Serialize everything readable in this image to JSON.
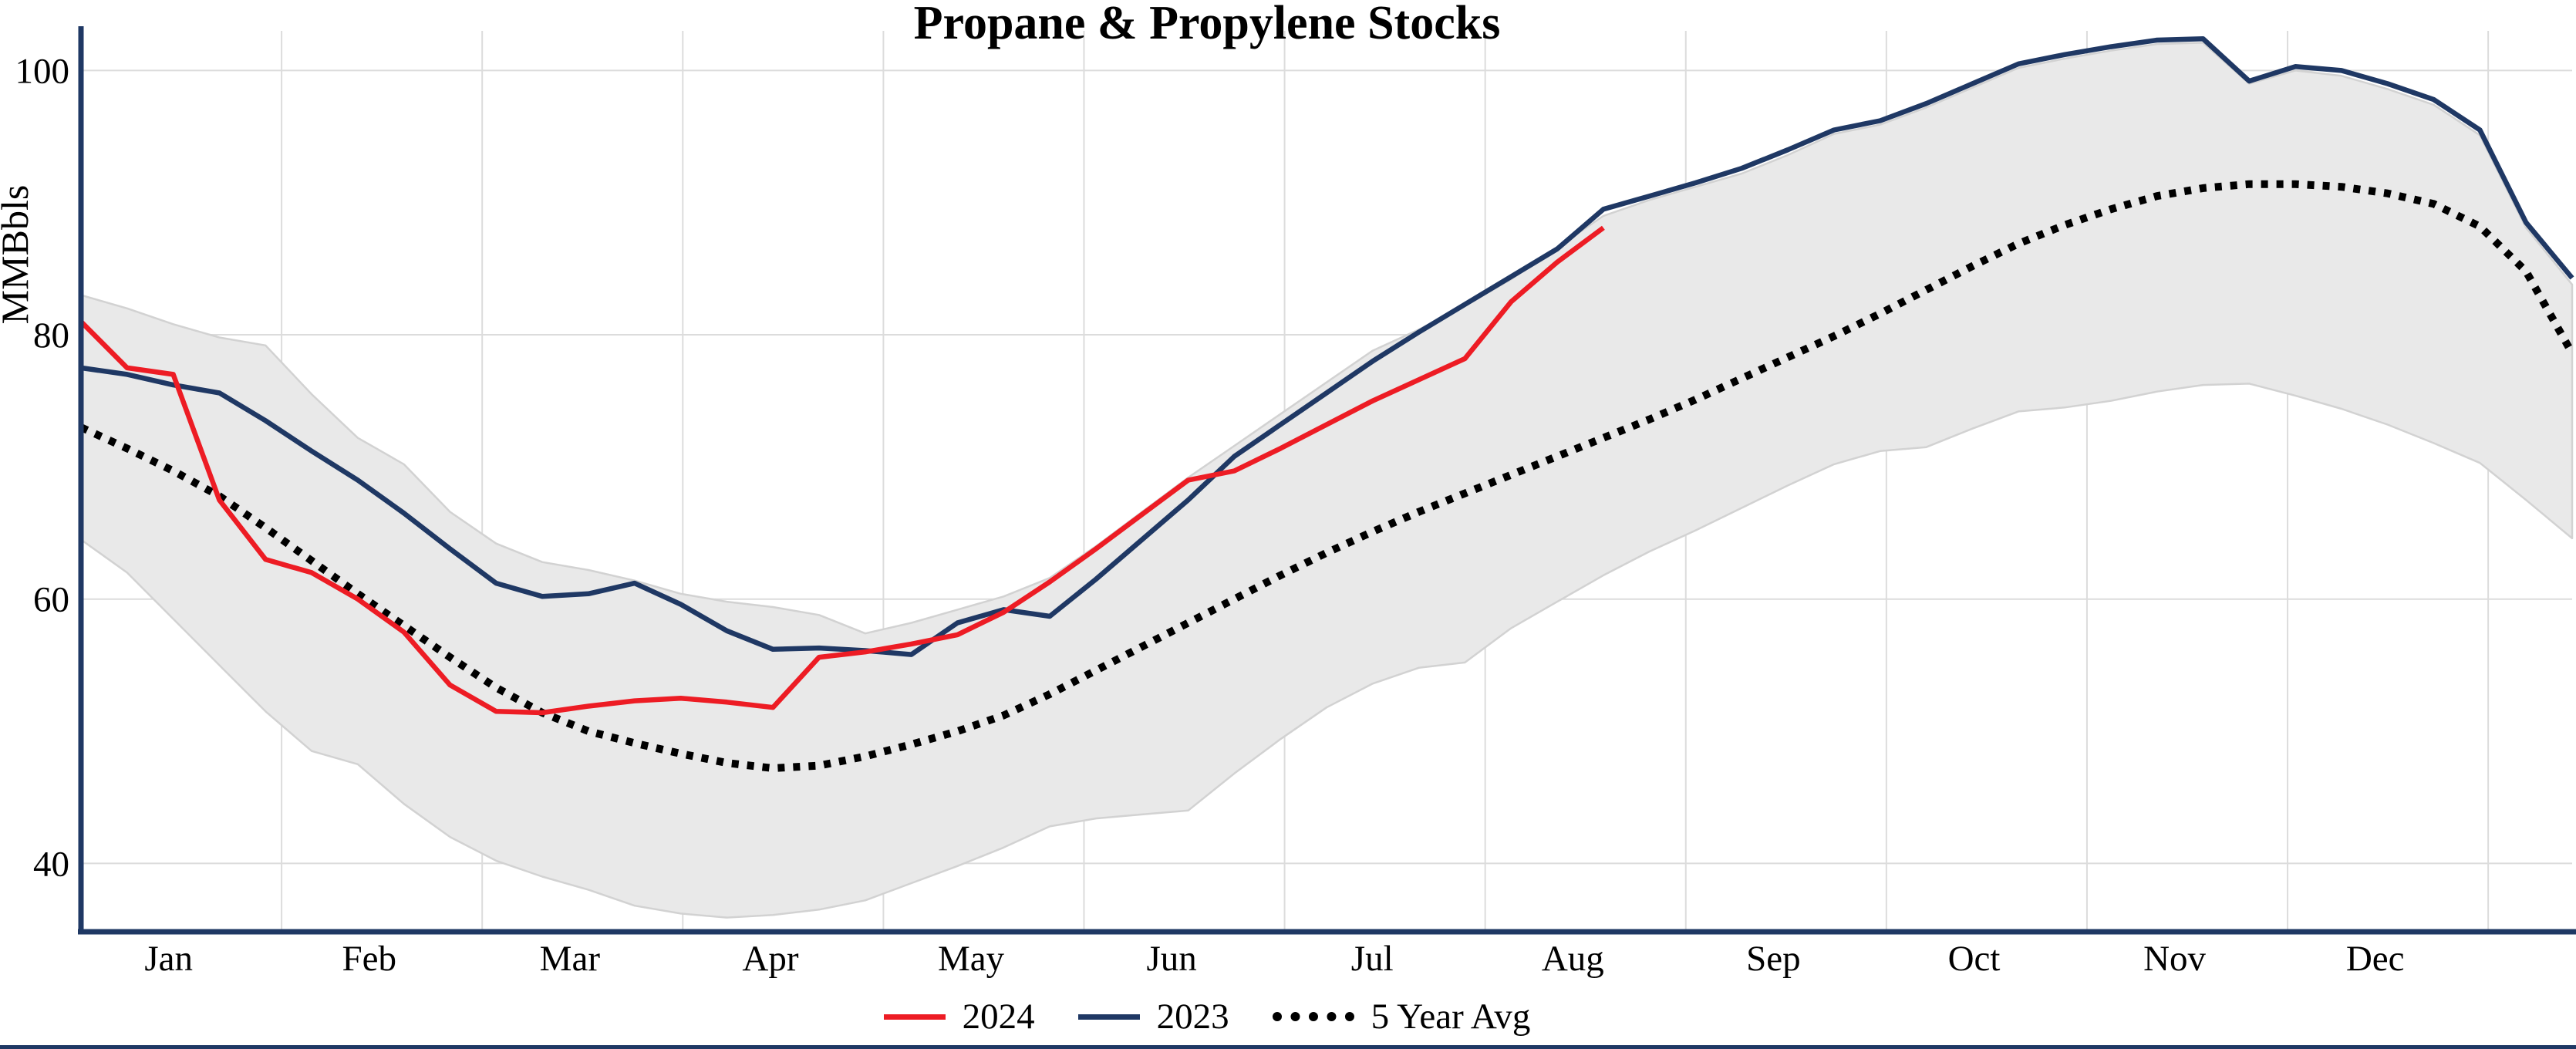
{
  "title": "Propane & Propylene Stocks",
  "chart_data": {
    "type": "line",
    "title": "Propane & Propylene Stocks",
    "ylabel": "MMBbls",
    "ylim": [
      35,
      103
    ],
    "y_ticks": [
      40,
      60,
      80,
      100
    ],
    "grid": true,
    "legend_position": "bottom",
    "x_unit": "weekly, Jan through Dec plus first weeks of following January",
    "month_labels": [
      "Jan",
      "Feb",
      "Mar",
      "Apr",
      "May",
      "Jun",
      "Jul",
      "Aug",
      "Sep",
      "Oct",
      "Nov",
      "Dec"
    ],
    "axis_color": "#1f3864",
    "gridline_color": "#dcdcdc",
    "series": [
      {
        "name": "2024",
        "color": "#ed1c24",
        "style": "solid",
        "values": [
          81,
          77.5,
          77,
          67.5,
          63,
          62,
          60,
          57.5,
          53.5,
          51.5,
          51.4,
          51.9,
          52.3,
          52.5,
          52.2,
          51.8,
          55.6,
          56,
          56.6,
          57.3,
          59,
          61.3,
          63.8,
          66.4,
          69,
          69.7,
          71.4,
          73.2,
          75,
          76.6,
          78.2,
          82.5,
          85.5,
          88.1
        ]
      },
      {
        "name": "2023",
        "color": "#1f3864",
        "style": "solid",
        "values": [
          77.5,
          77,
          76.2,
          75.6,
          73.5,
          71.2,
          69,
          66.5,
          63.8,
          61.2,
          60.2,
          60.4,
          61.2,
          59.6,
          57.6,
          56.2,
          56.3,
          56.1,
          55.8,
          58.2,
          59.2,
          58.7,
          61.5,
          64.5,
          67.5,
          70.8,
          73.2,
          75.6,
          78,
          80.2,
          82.3,
          84.4,
          86.5,
          89.5,
          90.5,
          91.5,
          92.6,
          94,
          95.5,
          96.2,
          97.5,
          99,
          100.5,
          101.2,
          101.8,
          102.3,
          102.4,
          99.2,
          100.3,
          100,
          99,
          97.8,
          95.5,
          88.5,
          84.3
        ]
      },
      {
        "name": "5 Year Avg",
        "color": "#000000",
        "style": "dotted",
        "values": [
          73,
          71.4,
          69.7,
          67.8,
          65.4,
          62.9,
          60.4,
          58,
          55.6,
          53.3,
          51.4,
          50,
          49.1,
          48.3,
          47.6,
          47.2,
          47.4,
          48.1,
          49,
          50,
          51.2,
          52.8,
          54.6,
          56.4,
          58.2,
          60,
          61.8,
          63.5,
          65.1,
          66.6,
          68,
          69.4,
          70.8,
          72.2,
          73.6,
          75.1,
          76.7,
          78.3,
          79.9,
          81.6,
          83.4,
          85.2,
          86.9,
          88.3,
          89.5,
          90.5,
          91.1,
          91.4,
          91.4,
          91.2,
          90.7,
          89.9,
          88.2,
          84.8,
          78.6
        ]
      }
    ],
    "range_band": {
      "name": "5-year range",
      "fill": "#e9e9e9",
      "edge": "#d2d2d2",
      "upper": [
        83,
        82,
        80.8,
        79.8,
        79.2,
        75.5,
        72.2,
        70.2,
        66.6,
        64.2,
        62.8,
        62.2,
        61.4,
        60.4,
        59.8,
        59.4,
        58.8,
        57.4,
        58.2,
        59.2,
        60.2,
        61.6,
        64,
        66.6,
        69.2,
        71.6,
        74,
        76.4,
        78.8,
        80.4,
        82.2,
        84.2,
        86.6,
        89,
        90.2,
        91.2,
        92.2,
        93.6,
        95.2,
        95.9,
        97.2,
        98.7,
        100.2,
        100.9,
        101.5,
        102,
        102.1,
        99,
        100,
        99.6,
        98.6,
        97.4,
        95.1,
        88.1,
        83.8
      ],
      "lower": [
        64.5,
        62,
        58.5,
        55,
        51.5,
        48.5,
        47.5,
        44.5,
        42,
        40.2,
        39,
        38,
        36.8,
        36.2,
        35.9,
        36.1,
        36.5,
        37.2,
        38.5,
        39.8,
        41.2,
        42.8,
        43.4,
        43.7,
        44,
        46.8,
        49.4,
        51.8,
        53.6,
        54.8,
        55.2,
        57.8,
        59.8,
        61.8,
        63.6,
        65.2,
        66.9,
        68.6,
        70.2,
        71.2,
        71.5,
        72.9,
        74.2,
        74.5,
        75,
        75.7,
        76.2,
        76.3,
        75.4,
        74.4,
        73.2,
        71.8,
        70.3,
        67.5,
        64.6
      ]
    }
  }
}
